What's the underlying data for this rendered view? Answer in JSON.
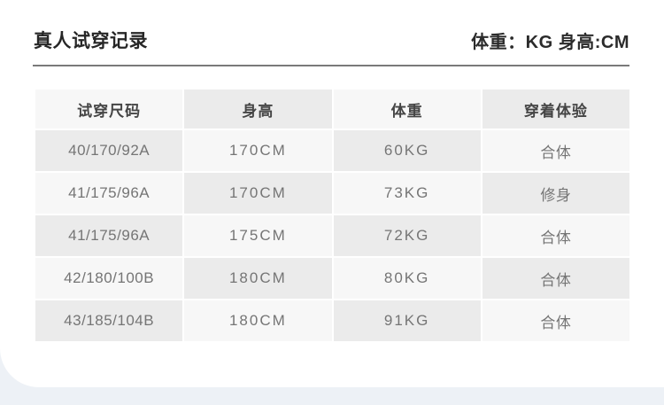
{
  "page": {
    "title": "真人试穿记录",
    "unit_note": "体重：KG 身高:CM"
  },
  "table": {
    "headers": [
      "试穿尺码",
      "身高",
      "体重",
      "穿着体验"
    ],
    "rows": [
      {
        "size": "40/170/92A",
        "height": "170CM",
        "weight": "60KG",
        "fit": "合体"
      },
      {
        "size": "41/175/96A",
        "height": "170CM",
        "weight": "73KG",
        "fit": "修身"
      },
      {
        "size": "41/175/96A",
        "height": "175CM",
        "weight": "72KG",
        "fit": "合体"
      },
      {
        "size": "42/180/100B",
        "height": "180CM",
        "weight": "80KG",
        "fit": "合体"
      },
      {
        "size": "43/185/104B",
        "height": "180CM",
        "weight": "91KG",
        "fit": "合体"
      }
    ]
  },
  "colors": {
    "page_bg": "#edf1f6",
    "card_bg": "#ffffff",
    "cell_light": "#f7f7f7",
    "cell_dark": "#ebebeb",
    "divider": "#7a7a7a",
    "title_text": "#262626",
    "header_text": "#454545",
    "data_text": "#757575"
  }
}
